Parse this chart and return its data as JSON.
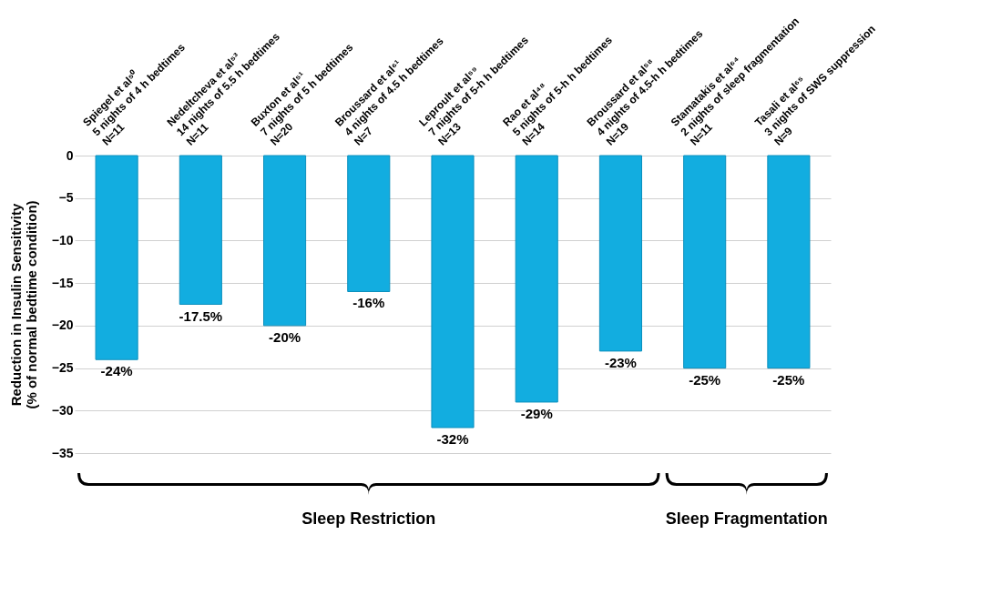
{
  "chart_data": {
    "type": "bar",
    "ylabel": "Reduction in Insulin Sensitivity\n(% of normal bedtime condition)",
    "categories": [
      "Spiegel et al⁵⁰\n5 nights of 4 h bedtimes\nN=11",
      "Nedeltcheva et al⁵³\n14 nights of 5.5 h bedtimes\nN=11",
      "Buxton et al⁵¹\n7 nights of 5 h bedtimes\nN=20",
      "Broussard et al⁶¹\n4 nights of 4.5 h bedtimes\nN=7",
      "Leproult et al⁵⁹\n7 nights of 5-h h bedtimes\nN=13",
      "Rao et al⁴⁸\n5 nights of 5-h h bedtimes\nN=14",
      "Broussard  et al⁵⁸\n4 nights of 4.5-h h bedtimes\nN=19",
      "Stamatakis et al⁶⁴\n2 nights of sleep fragmentation\nN=11",
      "Tasali et al⁶⁵\n3 nights of SWS suppression\nN=9"
    ],
    "values": [
      -24,
      -17.5,
      -20,
      -16,
      -32,
      -29,
      -23,
      -25,
      -25
    ],
    "value_labels": [
      "-24%",
      "-17.5%",
      "-20%",
      "-16%",
      "-32%",
      "-29%",
      "-23%",
      "-25%",
      "-25%"
    ],
    "color": "#12ade0",
    "ylim": [
      -35,
      0
    ],
    "yticks": [
      -35,
      -30,
      -25,
      -20,
      -15,
      -10,
      -5,
      0
    ],
    "grid": "y",
    "annotations": [
      "Sleep Restriction",
      "Sleep Fragmentation"
    ]
  }
}
